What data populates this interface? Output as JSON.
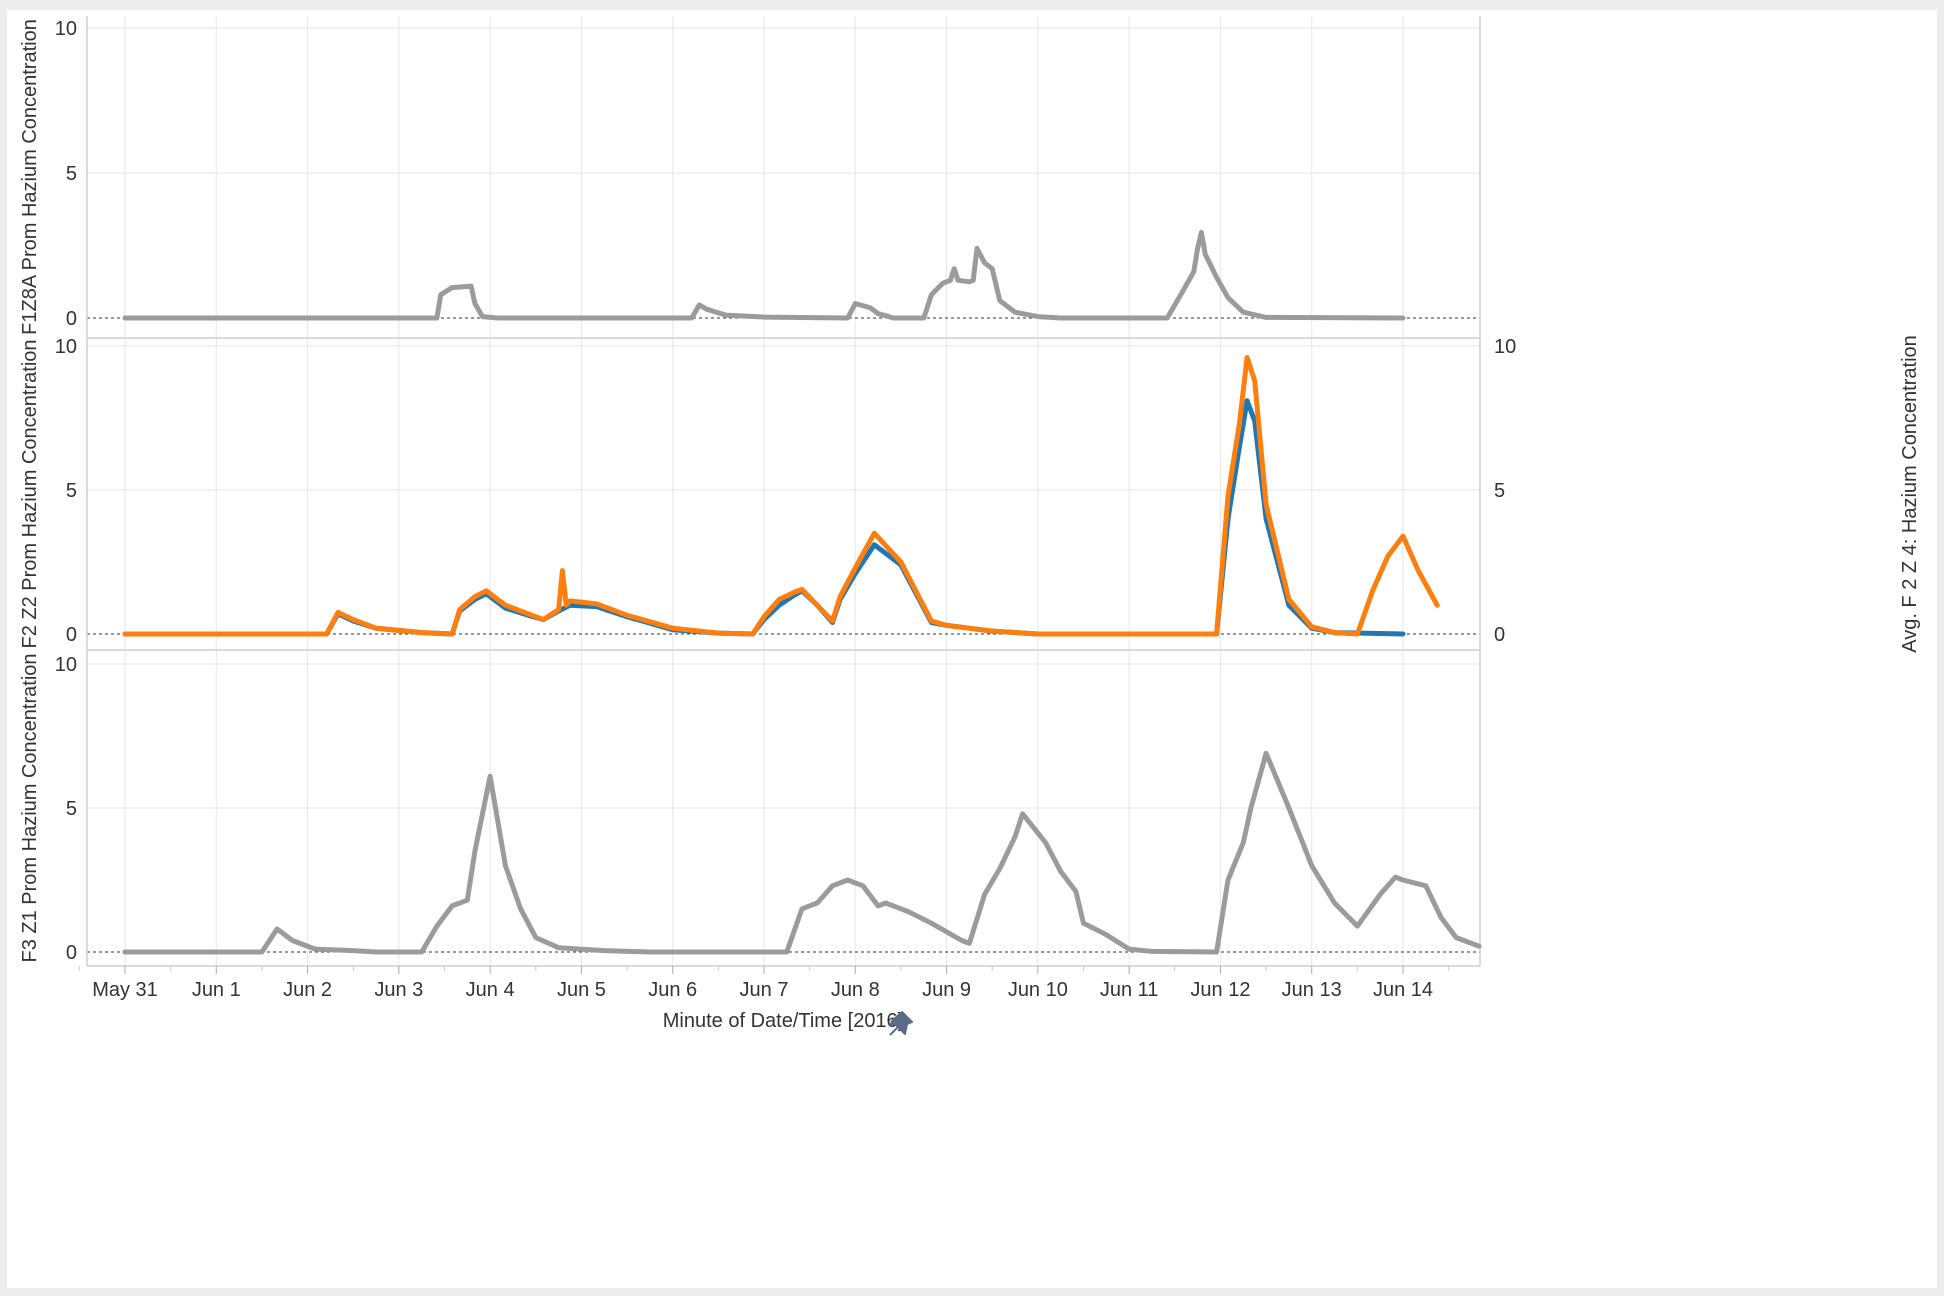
{
  "chart_data": {
    "type": "line",
    "xlabel": "Minute of Date/Time [2016]",
    "x_ticks": [
      "May 31",
      "Jun 1",
      "Jun 2",
      "Jun 3",
      "Jun 4",
      "Jun 5",
      "Jun 6",
      "Jun 7",
      "Jun 8",
      "Jun 9",
      "Jun 10",
      "Jun 11",
      "Jun 12",
      "Jun 13",
      "Jun 14"
    ],
    "xlim": [
      "May 30",
      "Jun 15"
    ],
    "colors": {
      "gray": "#9b9b9b",
      "blue": "#1f77b4",
      "orange": "#ff7f0e"
    },
    "panes": [
      {
        "ylabel": "F1Z8A Prom Hazium Concentration",
        "ylim": [
          0,
          10
        ],
        "y_ticks": [
          "0",
          "5",
          "10"
        ],
        "series": [
          {
            "color": "gray",
            "points": [
              [
                "May 31 00:00",
                0
              ],
              [
                "Jun 3 10:00",
                0
              ],
              [
                "Jun 3 11:00",
                0.8
              ],
              [
                "Jun 3 14:00",
                1.05
              ],
              [
                "Jun 3 19:00",
                1.1
              ],
              [
                "Jun 3 20:00",
                0.5
              ],
              [
                "Jun 3 22:00",
                0.05
              ],
              [
                "Jun 4 02:00",
                0
              ],
              [
                "Jun 6 05:00",
                0
              ],
              [
                "Jun 6 07:00",
                0.45
              ],
              [
                "Jun 6 09:00",
                0.3
              ],
              [
                "Jun 6 14:00",
                0.1
              ],
              [
                "Jun 7 00:00",
                0.03
              ],
              [
                "Jun 7 22:00",
                0
              ],
              [
                "Jun 8 00:00",
                0.5
              ],
              [
                "Jun 8 04:00",
                0.35
              ],
              [
                "Jun 8 06:00",
                0.15
              ],
              [
                "Jun 8 08:00",
                0.08
              ],
              [
                "Jun 8 10:00",
                0
              ],
              [
                "Jun 8 18:00",
                0
              ],
              [
                "Jun 8 20:00",
                0.8
              ],
              [
                "Jun 8 23:00",
                1.2
              ],
              [
                "Jun 9 01:00",
                1.3
              ],
              [
                "Jun 9 02:00",
                1.7
              ],
              [
                "Jun 9 03:00",
                1.3
              ],
              [
                "Jun 9 06:00",
                1.25
              ],
              [
                "Jun 9 07:00",
                1.3
              ],
              [
                "Jun 9 08:00",
                2.4
              ],
              [
                "Jun 9 10:00",
                1.9
              ],
              [
                "Jun 9 12:00",
                1.7
              ],
              [
                "Jun 9 14:00",
                0.6
              ],
              [
                "Jun 9 18:00",
                0.2
              ],
              [
                "Jun 10 00:00",
                0.05
              ],
              [
                "Jun 10 06:00",
                0
              ],
              [
                "Jun 11 10:00",
                0
              ],
              [
                "Jun 11 14:00",
                0.9
              ],
              [
                "Jun 11 17:00",
                1.6
              ],
              [
                "Jun 11 18:00",
                2.4
              ],
              [
                "Jun 11 19:00",
                2.95
              ],
              [
                "Jun 11 20:00",
                2.2
              ],
              [
                "Jun 11 23:00",
                1.4
              ],
              [
                "Jun 12 02:00",
                0.7
              ],
              [
                "Jun 12 06:00",
                0.2
              ],
              [
                "Jun 12 12:00",
                0.02
              ],
              [
                "Jun 14 00:00",
                0
              ]
            ]
          }
        ]
      },
      {
        "ylabel": "F2 Z2 Prom Hazium Concentration",
        "ylabel_right": "Avg. F 2 Z 4: Hazium Concentration",
        "ylim": [
          0,
          10
        ],
        "y_ticks": [
          "0",
          "5",
          "10"
        ],
        "series": [
          {
            "color": "blue",
            "points": [
              [
                "May 31 00:00",
                0
              ],
              [
                "Jun 2 05:00",
                0
              ],
              [
                "Jun 2 08:00",
                0.7
              ],
              [
                "Jun 2 12:00",
                0.45
              ],
              [
                "Jun 2 18:00",
                0.2
              ],
              [
                "Jun 3 06:00",
                0.05
              ],
              [
                "Jun 3 14:00",
                0
              ],
              [
                "Jun 3 16:00",
                0.8
              ],
              [
                "Jun 3 20:00",
                1.2
              ],
              [
                "Jun 3 23:00",
                1.4
              ],
              [
                "Jun 4 04:00",
                0.9
              ],
              [
                "Jun 4 10:00",
                0.65
              ],
              [
                "Jun 4 14:00",
                0.5
              ],
              [
                "Jun 4 18:00",
                0.8
              ],
              [
                "Jun 4 21:00",
                1.0
              ],
              [
                "Jun 5 04:00",
                0.95
              ],
              [
                "Jun 5 12:00",
                0.6
              ],
              [
                "Jun 6 00:00",
                0.15
              ],
              [
                "Jun 6 12:00",
                0.03
              ],
              [
                "Jun 6 21:00",
                0
              ],
              [
                "Jun 7 00:00",
                0.5
              ],
              [
                "Jun 7 04:00",
                1.0
              ],
              [
                "Jun 7 08:00",
                1.35
              ],
              [
                "Jun 7 10:00",
                1.5
              ],
              [
                "Jun 7 14:00",
                1.0
              ],
              [
                "Jun 7 18:00",
                0.4
              ],
              [
                "Jun 7 20:00",
                1.2
              ],
              [
                "Jun 8 00:00",
                2.1
              ],
              [
                "Jun 8 05:00",
                3.1
              ],
              [
                "Jun 8 12:00",
                2.4
              ],
              [
                "Jun 8 20:00",
                0.4
              ],
              [
                "Jun 9 00:00",
                0.3
              ],
              [
                "Jun 9 06:00",
                0.2
              ],
              [
                "Jun 9 12:00",
                0.1
              ],
              [
                "Jun 10 00:00",
                0
              ],
              [
                "Jun 11 23:00",
                0
              ],
              [
                "Jun 12 02:00",
                4.0
              ],
              [
                "Jun 12 05:00",
                6.5
              ],
              [
                "Jun 12 07:00",
                8.1
              ],
              [
                "Jun 12 09:00",
                7.4
              ],
              [
                "Jun 12 12:00",
                4.0
              ],
              [
                "Jun 12 18:00",
                1.0
              ],
              [
                "Jun 13 00:00",
                0.2
              ],
              [
                "Jun 13 06:00",
                0.05
              ],
              [
                "Jun 14 00:00",
                0
              ]
            ]
          },
          {
            "color": "orange",
            "points": [
              [
                "May 31 00:00",
                0
              ],
              [
                "Jun 2 05:00",
                0
              ],
              [
                "Jun 2 08:00",
                0.75
              ],
              [
                "Jun 2 12:00",
                0.5
              ],
              [
                "Jun 2 18:00",
                0.2
              ],
              [
                "Jun 3 06:00",
                0.05
              ],
              [
                "Jun 3 14:00",
                0
              ],
              [
                "Jun 3 16:00",
                0.85
              ],
              [
                "Jun 3 20:00",
                1.3
              ],
              [
                "Jun 3 23:00",
                1.5
              ],
              [
                "Jun 4 04:00",
                1.0
              ],
              [
                "Jun 4 10:00",
                0.7
              ],
              [
                "Jun 4 14:00",
                0.5
              ],
              [
                "Jun 4 18:00",
                0.85
              ],
              [
                "Jun 4 19:00",
                2.2
              ],
              [
                "Jun 4 20:00",
                1.0
              ],
              [
                "Jun 4 21:00",
                1.15
              ],
              [
                "Jun 5 04:00",
                1.05
              ],
              [
                "Jun 5 12:00",
                0.65
              ],
              [
                "Jun 6 00:00",
                0.2
              ],
              [
                "Jun 6 12:00",
                0.03
              ],
              [
                "Jun 6 21:00",
                0
              ],
              [
                "Jun 7 00:00",
                0.6
              ],
              [
                "Jun 7 04:00",
                1.2
              ],
              [
                "Jun 7 08:00",
                1.45
              ],
              [
                "Jun 7 10:00",
                1.55
              ],
              [
                "Jun 7 14:00",
                1.0
              ],
              [
                "Jun 7 18:00",
                0.45
              ],
              [
                "Jun 7 20:00",
                1.3
              ],
              [
                "Jun 8 00:00",
                2.3
              ],
              [
                "Jun 8 05:00",
                3.5
              ],
              [
                "Jun 8 12:00",
                2.5
              ],
              [
                "Jun 8 20:00",
                0.45
              ],
              [
                "Jun 9 00:00",
                0.3
              ],
              [
                "Jun 9 06:00",
                0.2
              ],
              [
                "Jun 9 12:00",
                0.1
              ],
              [
                "Jun 10 00:00",
                0
              ],
              [
                "Jun 11 23:00",
                0
              ],
              [
                "Jun 12 02:00",
                4.8
              ],
              [
                "Jun 12 05:00",
                7.3
              ],
              [
                "Jun 12 07:00",
                9.6
              ],
              [
                "Jun 12 09:00",
                8.8
              ],
              [
                "Jun 12 12:00",
                4.5
              ],
              [
                "Jun 12 18:00",
                1.2
              ],
              [
                "Jun 13 00:00",
                0.25
              ],
              [
                "Jun 13 06:00",
                0.05
              ],
              [
                "Jun 13 12:00",
                0
              ],
              [
                "Jun 13 16:00",
                1.5
              ],
              [
                "Jun 13 20:00",
                2.7
              ],
              [
                "Jun 14 00:00",
                3.4
              ],
              [
                "Jun 14 04:00",
                2.2
              ],
              [
                "Jun 14 09:00",
                1.0
              ]
            ]
          }
        ]
      },
      {
        "ylabel": "F3 Z1 Prom Hazium Concentration",
        "ylim": [
          0,
          10
        ],
        "y_ticks": [
          "0",
          "5",
          "10"
        ],
        "series": [
          {
            "color": "gray",
            "points": [
              [
                "May 31 00:00",
                0
              ],
              [
                "Jun 1 12:00",
                0
              ],
              [
                "Jun 1 16:00",
                0.8
              ],
              [
                "Jun 1 20:00",
                0.4
              ],
              [
                "Jun 2 02:00",
                0.1
              ],
              [
                "Jun 2 12:00",
                0.05
              ],
              [
                "Jun 2 18:00",
                0
              ],
              [
                "Jun 3 06:00",
                0
              ],
              [
                "Jun 3 10:00",
                0.9
              ],
              [
                "Jun 3 14:00",
                1.6
              ],
              [
                "Jun 3 18:00",
                1.8
              ],
              [
                "Jun 3 20:00",
                3.5
              ],
              [
                "Jun 4 00:00",
                6.1
              ],
              [
                "Jun 4 04:00",
                3.0
              ],
              [
                "Jun 4 08:00",
                1.5
              ],
              [
                "Jun 4 12:00",
                0.5
              ],
              [
                "Jun 4 18:00",
                0.15
              ],
              [
                "Jun 5 06:00",
                0.05
              ],
              [
                "Jun 5 18:00",
                0
              ],
              [
                "Jun 7 06:00",
                0
              ],
              [
                "Jun 7 10:00",
                1.5
              ],
              [
                "Jun 7 14:00",
                1.7
              ],
              [
                "Jun 7 18:00",
                2.3
              ],
              [
                "Jun 7 22:00",
                2.5
              ],
              [
                "Jun 8 02:00",
                2.3
              ],
              [
                "Jun 8 06:00",
                1.6
              ],
              [
                "Jun 8 08:00",
                1.7
              ],
              [
                "Jun 8 14:00",
                1.4
              ],
              [
                "Jun 8 20:00",
                1.0
              ],
              [
                "Jun 9 04:00",
                0.4
              ],
              [
                "Jun 9 06:00",
                0.3
              ],
              [
                "Jun 9 10:00",
                2.0
              ],
              [
                "Jun 9 14:00",
                2.9
              ],
              [
                "Jun 9 18:00",
                4.0
              ],
              [
                "Jun 9 20:00",
                4.8
              ],
              [
                "Jun 10 02:00",
                3.8
              ],
              [
                "Jun 10 06:00",
                2.8
              ],
              [
                "Jun 10 10:00",
                2.1
              ],
              [
                "Jun 10 12:00",
                1.0
              ],
              [
                "Jun 10 18:00",
                0.6
              ],
              [
                "Jun 11 00:00",
                0.1
              ],
              [
                "Jun 11 06:00",
                0.02
              ],
              [
                "Jun 11 23:00",
                0
              ],
              [
                "Jun 12 02:00",
                2.5
              ],
              [
                "Jun 12 06:00",
                3.8
              ],
              [
                "Jun 12 08:00",
                5.0
              ],
              [
                "Jun 12 12:00",
                6.9
              ],
              [
                "Jun 12 18:00",
                5.0
              ],
              [
                "Jun 13 00:00",
                3.0
              ],
              [
                "Jun 13 06:00",
                1.7
              ],
              [
                "Jun 13 12:00",
                0.9
              ],
              [
                "Jun 13 18:00",
                2.0
              ],
              [
                "Jun 13 22:00",
                2.6
              ],
              [
                "Jun 14 00:00",
                2.5
              ],
              [
                "Jun 14 06:00",
                2.3
              ],
              [
                "Jun 14 10:00",
                1.2
              ],
              [
                "Jun 14 14:00",
                0.5
              ],
              [
                "Jun 14 20:00",
                0.2
              ]
            ]
          }
        ]
      }
    ]
  }
}
